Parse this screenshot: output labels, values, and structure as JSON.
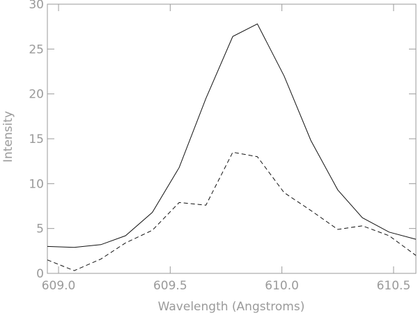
{
  "chart_data": {
    "type": "line",
    "title": "",
    "xlabel": "Wavelength (Angstroms)",
    "ylabel": "Intensity",
    "xlim": [
      608.95,
      610.6
    ],
    "ylim": [
      0,
      30
    ],
    "xticks": [
      609.0,
      609.5,
      610.0,
      610.5
    ],
    "xtick_labels": [
      "609.0",
      "609.5",
      "610.0",
      "610.5"
    ],
    "yticks": [
      0,
      5,
      10,
      15,
      20,
      25,
      30
    ],
    "ytick_labels": [
      "0",
      "5",
      "10",
      "15",
      "20",
      "25",
      "30"
    ],
    "grid": false,
    "x": [
      608.95,
      609.07,
      609.19,
      609.3,
      609.42,
      609.54,
      609.66,
      609.78,
      609.89,
      610.01,
      610.13,
      610.25,
      610.36,
      610.48,
      610.6
    ],
    "series": [
      {
        "style": "solid",
        "values": [
          3.0,
          2.9,
          3.2,
          4.2,
          6.8,
          11.8,
          19.5,
          26.4,
          27.8,
          22.0,
          14.8,
          9.3,
          6.2,
          4.6,
          3.8
        ]
      },
      {
        "style": "dashed",
        "values": [
          1.5,
          0.3,
          1.6,
          3.4,
          4.8,
          7.9,
          7.6,
          13.5,
          13.0,
          9.0,
          7.0,
          4.9,
          5.3,
          4.2,
          2.0
        ]
      }
    ]
  }
}
